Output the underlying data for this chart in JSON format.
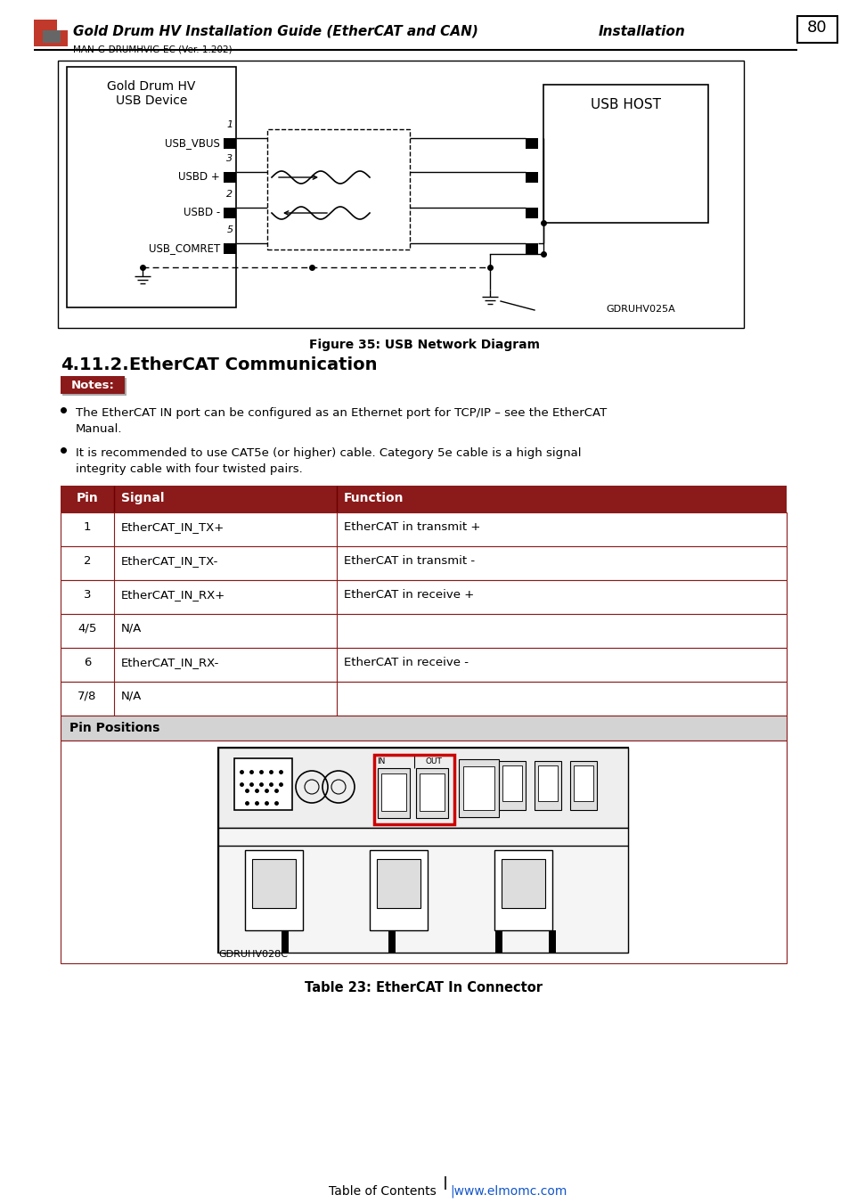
{
  "page_num": "80",
  "header_title": "Gold Drum HV Installation Guide (EtherCAT and CAN)",
  "header_right": "Installation",
  "header_sub": "MAN-G-DRUMHVIG-EC (Ver. 1.202)",
  "figure_caption": "Figure 35: USB Network Diagram",
  "section_num": "4.11.2.",
  "section_text": "EtherCAT Communication",
  "notes_label": "Notes:",
  "bullet1_line1": "The EtherCAT IN port can be configured as an Ethernet port for TCP/IP – see the EtherCAT",
  "bullet1_line2": "Manual.",
  "bullet2_line1": "It is recommended to use CAT5e (or higher) cable. Category 5e cable is a high signal",
  "bullet2_line2": "integrity cable with four twisted pairs.",
  "table_header": [
    "Pin",
    "Signal",
    "Function"
  ],
  "table_rows": [
    [
      "1",
      "EtherCAT_IN_TX+",
      "EtherCAT in transmit +"
    ],
    [
      "2",
      "EtherCAT_IN_TX-",
      "EtherCAT in transmit -"
    ],
    [
      "3",
      "EtherCAT_IN_RX+",
      "EtherCAT in receive +"
    ],
    [
      "4/5",
      "N/A",
      ""
    ],
    [
      "6",
      "EtherCAT_IN_RX-",
      "EtherCAT in receive -"
    ],
    [
      "7/8",
      "N/A",
      ""
    ]
  ],
  "pin_positions_label": "Pin Positions",
  "image_note": "GDRUHV028C",
  "table_caption": "Table 23: EtherCAT In Connector",
  "footer_left": "Table of Contents",
  "footer_right": "www.elmomc.com",
  "header_color": "#8B1A1A",
  "table_header_color": "#8B1A1A",
  "table_border_color": "#8B1A1A",
  "notes_bg": "#8B1A1A",
  "pin_positions_bg": "#D3D3D3",
  "background_color": "#FFFFFF",
  "gdruhv025a": "GDRUHV025A"
}
